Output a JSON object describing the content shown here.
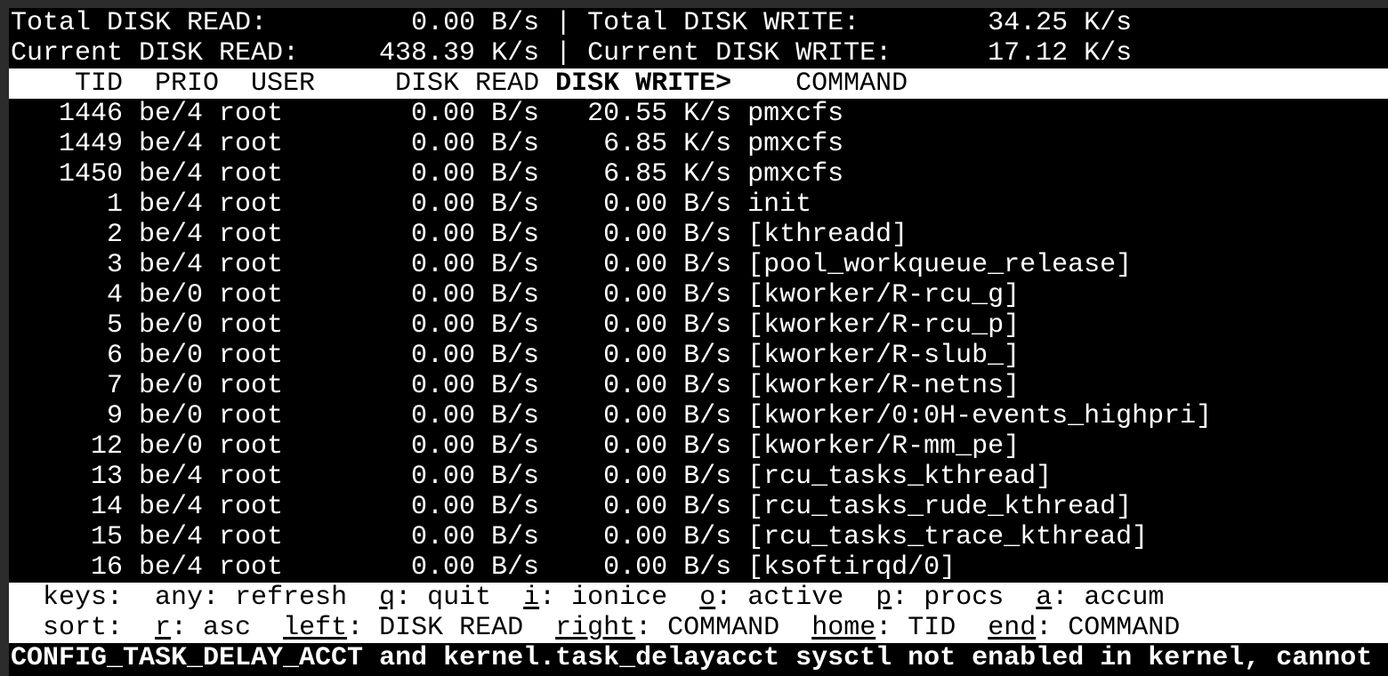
{
  "summary": {
    "total_read_label": "Total DISK READ:",
    "total_read": "0.00 B/s",
    "total_write_label": "Total DISK WRITE:",
    "total_write": "34.25 K/s",
    "current_read_label": "Current DISK READ:",
    "current_read": "438.39 K/s",
    "current_write_label": "Current DISK WRITE:",
    "current_write": "17.12 K/s",
    "separator": "|"
  },
  "columns": {
    "tid": "TID",
    "prio": "PRIO",
    "user": "USER",
    "disk_read": "DISK READ",
    "disk_write": "DISK WRITE>",
    "command": "COMMAND"
  },
  "rows": [
    {
      "tid": "1446",
      "prio": "be/4",
      "user": "root",
      "read": "0.00 B/s",
      "write": "20.55 K/s",
      "command": "pmxcfs"
    },
    {
      "tid": "1449",
      "prio": "be/4",
      "user": "root",
      "read": "0.00 B/s",
      "write": "6.85 K/s",
      "command": "pmxcfs"
    },
    {
      "tid": "1450",
      "prio": "be/4",
      "user": "root",
      "read": "0.00 B/s",
      "write": "6.85 K/s",
      "command": "pmxcfs"
    },
    {
      "tid": "1",
      "prio": "be/4",
      "user": "root",
      "read": "0.00 B/s",
      "write": "0.00 B/s",
      "command": "init"
    },
    {
      "tid": "2",
      "prio": "be/4",
      "user": "root",
      "read": "0.00 B/s",
      "write": "0.00 B/s",
      "command": "[kthreadd]"
    },
    {
      "tid": "3",
      "prio": "be/4",
      "user": "root",
      "read": "0.00 B/s",
      "write": "0.00 B/s",
      "command": "[pool_workqueue_release]"
    },
    {
      "tid": "4",
      "prio": "be/0",
      "user": "root",
      "read": "0.00 B/s",
      "write": "0.00 B/s",
      "command": "[kworker/R-rcu_g]"
    },
    {
      "tid": "5",
      "prio": "be/0",
      "user": "root",
      "read": "0.00 B/s",
      "write": "0.00 B/s",
      "command": "[kworker/R-rcu_p]"
    },
    {
      "tid": "6",
      "prio": "be/0",
      "user": "root",
      "read": "0.00 B/s",
      "write": "0.00 B/s",
      "command": "[kworker/R-slub_]"
    },
    {
      "tid": "7",
      "prio": "be/0",
      "user": "root",
      "read": "0.00 B/s",
      "write": "0.00 B/s",
      "command": "[kworker/R-netns]"
    },
    {
      "tid": "9",
      "prio": "be/0",
      "user": "root",
      "read": "0.00 B/s",
      "write": "0.00 B/s",
      "command": "[kworker/0:0H-events_highpri]"
    },
    {
      "tid": "12",
      "prio": "be/0",
      "user": "root",
      "read": "0.00 B/s",
      "write": "0.00 B/s",
      "command": "[kworker/R-mm_pe]"
    },
    {
      "tid": "13",
      "prio": "be/4",
      "user": "root",
      "read": "0.00 B/s",
      "write": "0.00 B/s",
      "command": "[rcu_tasks_kthread]"
    },
    {
      "tid": "14",
      "prio": "be/4",
      "user": "root",
      "read": "0.00 B/s",
      "write": "0.00 B/s",
      "command": "[rcu_tasks_rude_kthread]"
    },
    {
      "tid": "15",
      "prio": "be/4",
      "user": "root",
      "read": "0.00 B/s",
      "write": "0.00 B/s",
      "command": "[rcu_tasks_trace_kthread]"
    },
    {
      "tid": "16",
      "prio": "be/4",
      "user": "root",
      "read": "0.00 B/s",
      "write": "0.00 B/s",
      "command": "[ksoftirqd/0]"
    }
  ],
  "keys": {
    "label": "keys:",
    "items": [
      {
        "key": "any",
        "label": "refresh",
        "underline": false
      },
      {
        "key": "q",
        "label": "quit",
        "underline": true
      },
      {
        "key": "i",
        "label": "ionice",
        "underline": true
      },
      {
        "key": "o",
        "label": "active",
        "underline": true
      },
      {
        "key": "p",
        "label": "procs",
        "underline": true
      },
      {
        "key": "a",
        "label": "accum",
        "underline": true
      }
    ]
  },
  "sort": {
    "label": "sort:",
    "items": [
      {
        "key": "r",
        "label": "asc",
        "underline": true
      },
      {
        "key": "left",
        "label": "DISK READ",
        "underline": true
      },
      {
        "key": "right",
        "label": "COMMAND",
        "underline": true
      },
      {
        "key": "home",
        "label": "TID",
        "underline": true
      },
      {
        "key": "end",
        "label": "COMMAND",
        "underline": true
      }
    ]
  },
  "message": "CONFIG_TASK_DELAY_ACCT and kernel.task_delayacct sysctl not enabled in kernel, cannot",
  "colors": {
    "background": "#000000",
    "foreground": "#ffffff",
    "inverse_bg": "#ffffff",
    "frame": "#2c2c2c"
  }
}
